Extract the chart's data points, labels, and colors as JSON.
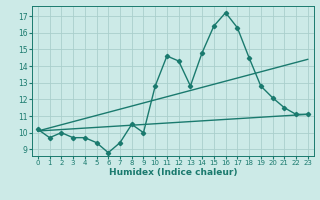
{
  "title": "",
  "xlabel": "Humidex (Indice chaleur)",
  "bg_color": "#cceae7",
  "grid_color": "#aacfcc",
  "line_color": "#1a7a6e",
  "xlim": [
    -0.5,
    23.5
  ],
  "ylim": [
    8.6,
    17.6
  ],
  "yticks": [
    9,
    10,
    11,
    12,
    13,
    14,
    15,
    16,
    17
  ],
  "xticks": [
    0,
    1,
    2,
    3,
    4,
    5,
    6,
    7,
    8,
    9,
    10,
    11,
    12,
    13,
    14,
    15,
    16,
    17,
    18,
    19,
    20,
    21,
    22,
    23
  ],
  "series1_x": [
    0,
    1,
    2,
    3,
    4,
    5,
    6,
    7,
    8,
    9,
    10,
    11,
    12,
    13,
    14,
    15,
    16,
    17,
    18,
    19,
    20,
    21,
    22,
    23
  ],
  "series1_y": [
    10.2,
    9.7,
    10.0,
    9.7,
    9.7,
    9.4,
    8.8,
    9.4,
    10.5,
    10.0,
    12.8,
    14.6,
    14.3,
    12.8,
    14.8,
    16.4,
    17.2,
    16.3,
    14.5,
    12.8,
    12.1,
    11.5,
    11.1,
    11.1
  ],
  "series2_x": [
    0,
    23
  ],
  "series2_y": [
    10.1,
    14.4
  ],
  "series3_x": [
    0,
    23
  ],
  "series3_y": [
    10.1,
    11.1
  ],
  "marker": "D",
  "marker_size": 2.2,
  "line_width": 1.0,
  "tick_fontsize": 5.0,
  "xlabel_fontsize": 6.5
}
